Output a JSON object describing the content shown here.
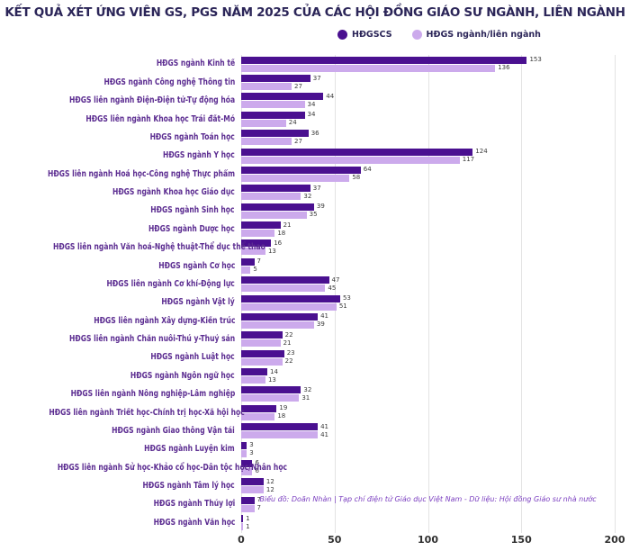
{
  "title": "KẾT QUẢ XÉT ỨNG VIÊN GS, PGS NĂM 2025 CỦA CÁC HỘI ĐỒNG GIÁO SƯ NGÀNH, LIÊN NGÀNH",
  "legend": {
    "items": [
      {
        "label": "HĐGSCS",
        "color": "#4a1090"
      },
      {
        "label": "HĐGS ngành/liên ngành",
        "color": "#ccaaec"
      }
    ]
  },
  "footer": "Biểu đồ: Doãn Nhàn | Tạp chí điện tử Giáo dục Việt Nam  -  Dữ liệu: Hội đồng Giáo sư nhà nước",
  "colors": {
    "dark_bar": "#4a1090",
    "light_bar": "#ccaaec",
    "category_label": "#5c2d91",
    "title_text": "#2b2558",
    "footer_text": "#7b3fc0",
    "gridline": "#e3e3e3",
    "value_text": "#3a3a3a"
  },
  "chart_data": {
    "type": "bar",
    "orientation": "horizontal",
    "title": "KẾT QUẢ XÉT ỨNG VIÊN GS, PGS NĂM 2025 CỦA CÁC HỘI ĐỒNG GIÁO SƯ NGÀNH, LIÊN NGÀNH",
    "xlabel": "",
    "ylabel": "",
    "xlim": [
      0,
      200
    ],
    "xticks": [
      0,
      50,
      100,
      150,
      200
    ],
    "grid": "vertical",
    "legend_position": "top",
    "categories": [
      "HĐGS ngành Kinh tế",
      "HĐGS ngành Công nghệ Thông tin",
      "HĐGS liên ngành Điện-Điện tử-Tự động hóa",
      "HĐGS liên ngành Khoa học Trái đất-Mỏ",
      "HĐGS ngành Toán học",
      "HĐGS ngành Y học",
      "HĐGS liên ngành Hoá học-Công nghệ Thực phẩm",
      "HĐGS ngành Khoa học Giáo dục",
      "HĐGS ngành Sinh học",
      "HĐGS ngành Dược học",
      "HĐGS liên ngành Văn hoá-Nghệ thuật-Thể dục thể thao",
      "HĐGS ngành Cơ học",
      "HĐGS liên ngành Cơ khí-Động lực",
      "HĐGS ngành Vật lý",
      "HĐGS liên ngành Xây dựng-Kiến trúc",
      "HĐGS liên ngành Chăn nuôi-Thú y-Thuỷ sản",
      "HĐGS ngành Luật học",
      "HĐGS ngành Ngôn ngữ học",
      "HĐGS liên ngành Nông nghiệp-Lâm nghiệp",
      "HĐGS liên ngành Triết học-Chính trị học-Xã hội học",
      "HĐGS ngành Giao thông Vận tải",
      "HĐGS ngành Luyện kim",
      "HĐGS liên ngành Sử học-Khảo cổ học-Dân tộc học/Nhân học",
      "HĐGS ngành Tâm lý học",
      "HĐGS ngành Thủy lợi",
      "HĐGS ngành Văn học"
    ],
    "series": [
      {
        "name": "HĐGSCS",
        "values": [
          153,
          37,
          44,
          34,
          36,
          124,
          64,
          37,
          39,
          21,
          16,
          7,
          47,
          53,
          41,
          22,
          23,
          14,
          32,
          19,
          41,
          3,
          6,
          12,
          7,
          1
        ]
      },
      {
        "name": "HĐGS ngành/liên ngành",
        "values": [
          136,
          27,
          34,
          24,
          27,
          117,
          58,
          32,
          35,
          18,
          13,
          5,
          45,
          51,
          39,
          21,
          22,
          13,
          31,
          18,
          41,
          3,
          6,
          12,
          7,
          1
        ]
      }
    ]
  }
}
